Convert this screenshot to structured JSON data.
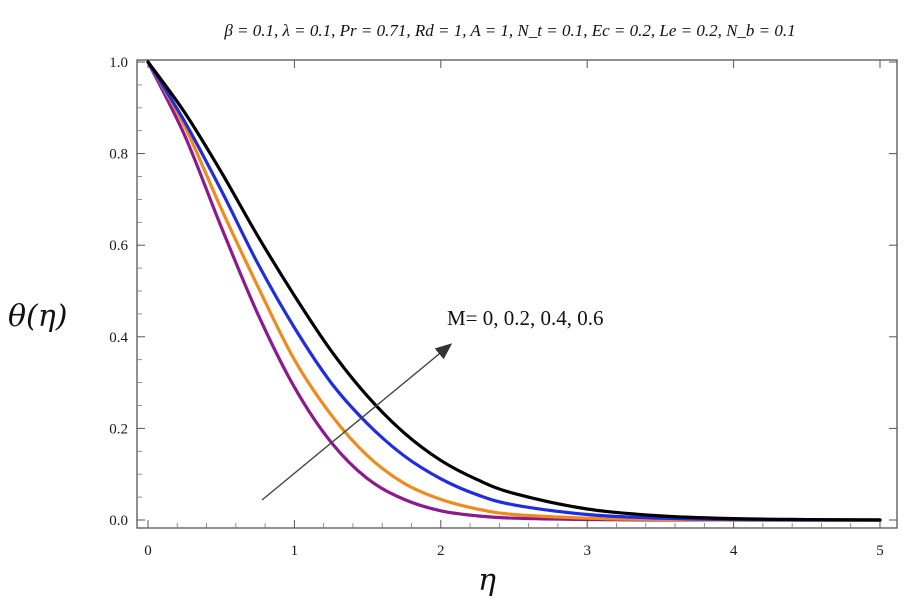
{
  "chart_data": {
    "type": "line",
    "title": "β = 0.1, λ = 0.1, Pr = 0.71, Rd = 1, A = 1, N_t = 0.1, Ec = 0.2, Le = 0.2, N_b = 0.1",
    "xlabel": "η",
    "ylabel": "θ(η)",
    "xlim": [
      0,
      5
    ],
    "ylim": [
      0,
      1
    ],
    "x_ticks": [
      "0",
      "1",
      "2",
      "3",
      "4",
      "5"
    ],
    "y_ticks": [
      "0.0",
      "0.2",
      "0.4",
      "0.6",
      "0.8",
      "1.0"
    ],
    "annotation": "M= 0, 0.2, 0.4, 0.6",
    "grid": false,
    "series": [
      {
        "color": "#8b1a8f",
        "x": [
          0,
          0.25,
          0.5,
          0.75,
          1.0,
          1.25,
          1.5,
          1.75,
          2.0,
          2.25,
          2.5,
          3.0,
          3.5,
          4.0,
          4.5,
          5.0
        ],
        "y": [
          1.0,
          0.84,
          0.64,
          0.45,
          0.29,
          0.17,
          0.09,
          0.045,
          0.02,
          0.009,
          0.004,
          0.001,
          0.0,
          0.0,
          0.0,
          0.0
        ]
      },
      {
        "color": "#f08a1c",
        "x": [
          0,
          0.25,
          0.5,
          0.75,
          1.0,
          1.25,
          1.5,
          1.75,
          2.0,
          2.25,
          2.5,
          3.0,
          3.5,
          4.0,
          4.5,
          5.0
        ],
        "y": [
          1.0,
          0.86,
          0.68,
          0.51,
          0.35,
          0.23,
          0.14,
          0.08,
          0.045,
          0.024,
          0.012,
          0.004,
          0.001,
          0.0,
          0.0,
          0.0
        ]
      },
      {
        "color": "#1f2de0",
        "x": [
          0,
          0.25,
          0.5,
          0.75,
          1.0,
          1.25,
          1.5,
          1.75,
          2.0,
          2.25,
          2.5,
          3.0,
          3.5,
          4.0,
          4.5,
          5.0
        ],
        "y": [
          1.0,
          0.87,
          0.72,
          0.56,
          0.42,
          0.3,
          0.21,
          0.14,
          0.09,
          0.055,
          0.033,
          0.012,
          0.004,
          0.001,
          0.0,
          0.0
        ]
      },
      {
        "color": "#000000",
        "x": [
          0,
          0.25,
          0.5,
          0.75,
          1.0,
          1.25,
          1.5,
          1.75,
          2.0,
          2.25,
          2.5,
          3.0,
          3.5,
          4.0,
          4.5,
          5.0
        ],
        "y": [
          1.0,
          0.89,
          0.76,
          0.62,
          0.49,
          0.37,
          0.27,
          0.19,
          0.13,
          0.088,
          0.058,
          0.024,
          0.009,
          0.003,
          0.001,
          0.0
        ]
      }
    ]
  }
}
